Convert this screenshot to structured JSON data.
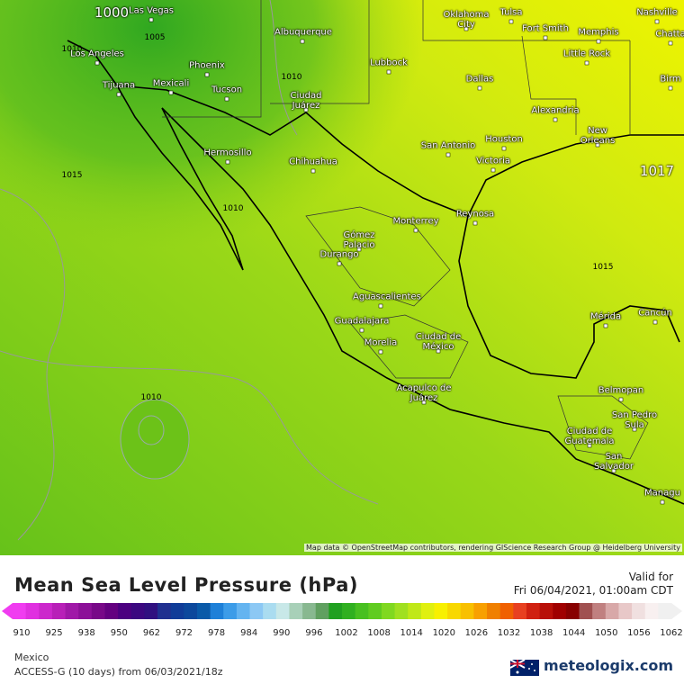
{
  "map": {
    "cities": [
      "Las Vegas",
      "Oklahoma City",
      "Tulsa",
      "Nashville",
      "Fort Smith",
      "Memphis",
      "Chatta",
      "Albuquerque",
      "Los Angeles",
      "Phoenix",
      "Little Rock",
      "Lubbock",
      "Birm",
      "Tijuana",
      "Mexicali",
      "Tucson",
      "Dallas",
      "Ciudad Juárez",
      "Alexandria",
      "Houston",
      "New Orleans",
      "San Antonio",
      "Hermosillo",
      "Victoria",
      "Chihuahua",
      "Monterrey",
      "Reynosa",
      "Gómez Palacio",
      "Durango",
      "Aguascalientes",
      "Mérida",
      "Cancún",
      "Guadalajara",
      "Morelia",
      "Ciudad de México",
      "Acapulco de Juárez",
      "Belmopan",
      "San Pedro Sula",
      "Ciudad de Guatemala",
      "San Salvador",
      "Managu"
    ],
    "isobars": [
      1000,
      1010,
      1005,
      1010,
      1015,
      1010,
      1017,
      1015,
      1010
    ],
    "attribution": "Map data © OpenStreetMap contributors, rendering GIScience Research Group @ Heidelberg University"
  },
  "legend": {
    "title": "Mean Sea Level Pressure (hPa)",
    "valid_label": "Valid for",
    "valid_time": "Fri 06/04/2021, 01:00am CDT",
    "scale_labels": [
      910,
      925,
      938,
      950,
      962,
      972,
      978,
      984,
      990,
      996,
      1002,
      1008,
      1014,
      1020,
      1026,
      1032,
      1038,
      1044,
      1050,
      1056,
      1062
    ],
    "colors": [
      "#f03cf0",
      "#e030e0",
      "#cc28cc",
      "#b820b8",
      "#a018a8",
      "#8c1098",
      "#780888",
      "#640080",
      "#4c0080",
      "#3c0880",
      "#301080",
      "#203090",
      "#103c98",
      "#0c489c",
      "#0a5aa8",
      "#1e80d8",
      "#3c9ce8",
      "#64b4f0",
      "#8cc8f4",
      "#aadcf0",
      "#c8e8e8",
      "#a8d0b8",
      "#88b890",
      "#60a060",
      "#20a020",
      "#30b020",
      "#48c020",
      "#60cc20",
      "#80d820",
      "#a0e020",
      "#c0e818",
      "#e0f010",
      "#f8f000",
      "#f8d800",
      "#f8c000",
      "#f8a000",
      "#f08000",
      "#f06000",
      "#e84020",
      "#d02010",
      "#b81008",
      "#a00000",
      "#880000",
      "#a05050",
      "#c08080",
      "#d8a8a8",
      "#e8c8c8",
      "#f0e0e0",
      "#f8f0f0",
      "#f0f0f0"
    ]
  },
  "footer": {
    "region": "Mexico",
    "model": "ACCESS-G (10 days) from 06/03/2021/18z",
    "brand": "meteologix.com"
  }
}
